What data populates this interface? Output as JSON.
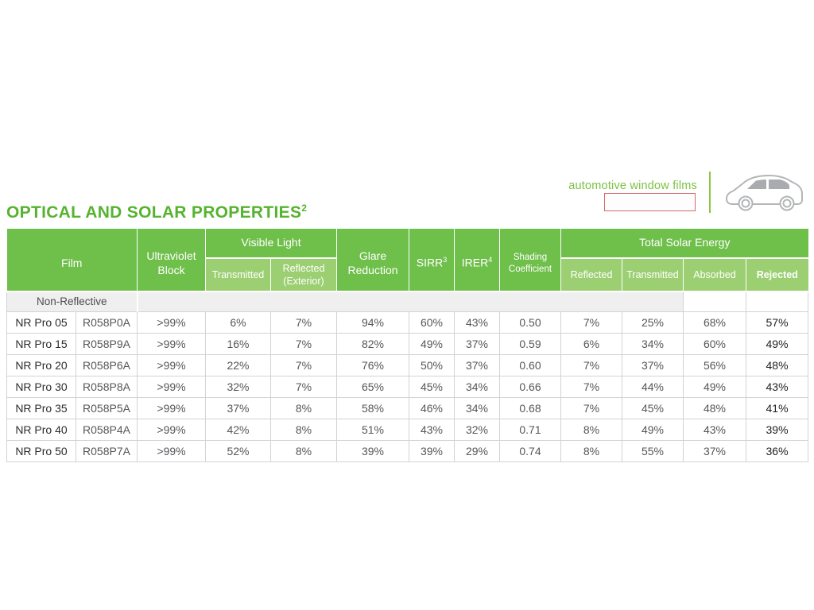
{
  "brand": {
    "tagline": "automotive window films",
    "logo_box_text": ""
  },
  "title": {
    "text": "OPTICAL AND SOLAR PROPERTIES",
    "footnote_ref": "2"
  },
  "colors": {
    "header_green": "#6fbf4b",
    "subheader_green": "#9ccf72",
    "title_green": "#56b32f",
    "tagline_green": "#7cc242",
    "brand_divider_green": "#8cc63f",
    "logo_box_border_red": "#d4696a",
    "section_row_gray": "#efeff0",
    "table_border_gray": "#d1d3d4",
    "value_text_gray": "#55565a"
  },
  "table": {
    "headers": {
      "film": "Film",
      "uv_block": "Ultraviolet Block",
      "visible_light": "Visible Light",
      "vl_transmitted": "Transmitted",
      "vl_reflected": "Reflected (Exterior)",
      "glare_reduction": "Glare Reduction",
      "sirr": "SIRR",
      "sirr_sup": "3",
      "irer": "IRER",
      "irer_sup": "4",
      "shading_coefficient": "Shading Coefficient",
      "total_solar_energy": "Total Solar Energy",
      "tse_reflected": "Reflected",
      "tse_transmitted": "Transmitted",
      "tse_absorbed": "Absorbed",
      "tse_rejected": "Rejected"
    },
    "section_label": "Non-Reflective",
    "rows": [
      {
        "name": "NR Pro 05",
        "code": "R058P0A",
        "uv": ">99%",
        "vl_t": "6%",
        "vl_r": "7%",
        "glare": "94%",
        "sirr": "60%",
        "irer": "43%",
        "sc": "0.50",
        "tse_r": "7%",
        "tse_t": "25%",
        "tse_a": "68%",
        "tse_rej": "57%"
      },
      {
        "name": "NR Pro 15",
        "code": "R058P9A",
        "uv": ">99%",
        "vl_t": "16%",
        "vl_r": "7%",
        "glare": "82%",
        "sirr": "49%",
        "irer": "37%",
        "sc": "0.59",
        "tse_r": "6%",
        "tse_t": "34%",
        "tse_a": "60%",
        "tse_rej": "49%"
      },
      {
        "name": "NR Pro 20",
        "code": "R058P6A",
        "uv": ">99%",
        "vl_t": "22%",
        "vl_r": "7%",
        "glare": "76%",
        "sirr": "50%",
        "irer": "37%",
        "sc": "0.60",
        "tse_r": "7%",
        "tse_t": "37%",
        "tse_a": "56%",
        "tse_rej": "48%"
      },
      {
        "name": "NR Pro 30",
        "code": "R058P8A",
        "uv": ">99%",
        "vl_t": "32%",
        "vl_r": "7%",
        "glare": "65%",
        "sirr": "45%",
        "irer": "34%",
        "sc": "0.66",
        "tse_r": "7%",
        "tse_t": "44%",
        "tse_a": "49%",
        "tse_rej": "43%"
      },
      {
        "name": "NR Pro 35",
        "code": "R058P5A",
        "uv": ">99%",
        "vl_t": "37%",
        "vl_r": "8%",
        "glare": "58%",
        "sirr": "46%",
        "irer": "34%",
        "sc": "0.68",
        "tse_r": "7%",
        "tse_t": "45%",
        "tse_a": "48%",
        "tse_rej": "41%"
      },
      {
        "name": "NR Pro 40",
        "code": "R058P4A",
        "uv": ">99%",
        "vl_t": "42%",
        "vl_r": "8%",
        "glare": "51%",
        "sirr": "43%",
        "irer": "32%",
        "sc": "0.71",
        "tse_r": "8%",
        "tse_t": "49%",
        "tse_a": "43%",
        "tse_rej": "39%"
      },
      {
        "name": "NR Pro 50",
        "code": "R058P7A",
        "uv": ">99%",
        "vl_t": "52%",
        "vl_r": "8%",
        "glare": "39%",
        "sirr": "39%",
        "irer": "29%",
        "sc": "0.74",
        "tse_r": "8%",
        "tse_t": "55%",
        "tse_a": "37%",
        "tse_rej": "36%"
      }
    ]
  }
}
